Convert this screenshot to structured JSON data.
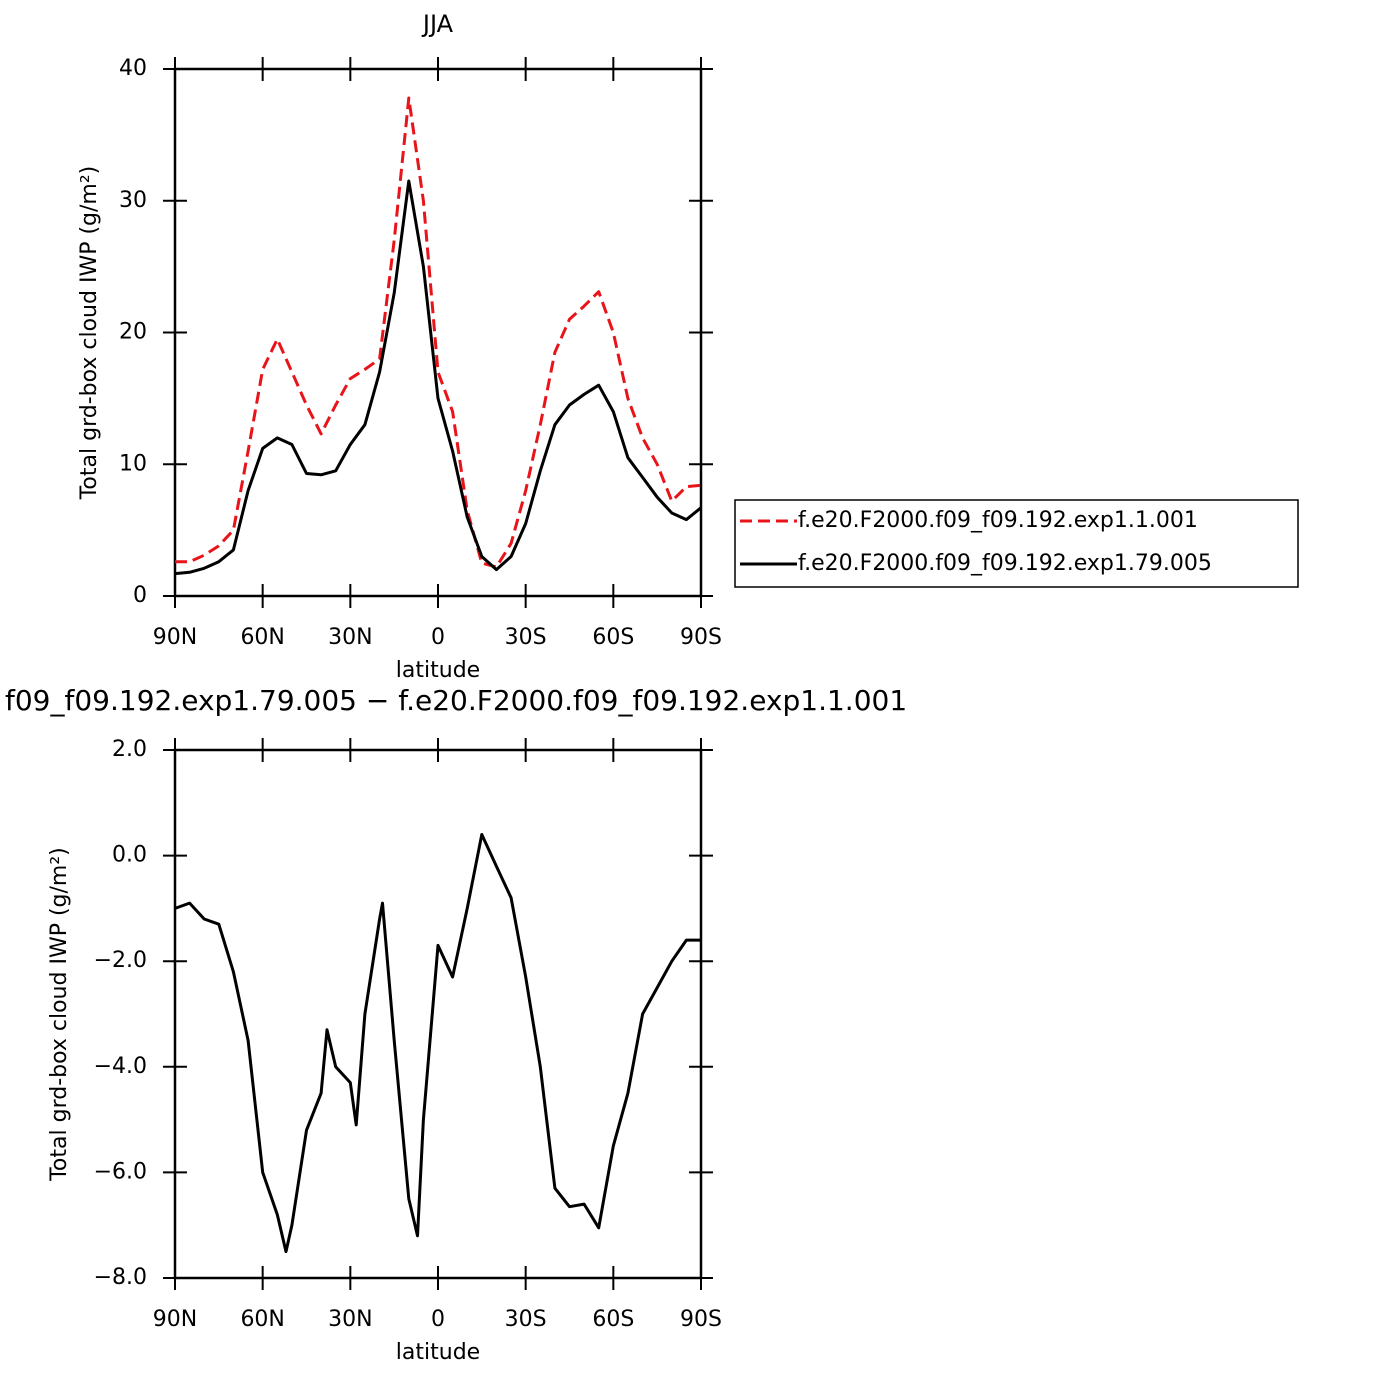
{
  "chart_data": [
    {
      "type": "line",
      "title": "JJA",
      "x_label": "latitude",
      "y_label": "Total grd-box cloud IWP (g/m²)",
      "x": [
        90,
        85,
        80,
        75,
        70,
        65,
        60,
        55,
        50,
        45,
        40,
        35,
        30,
        25,
        20,
        15,
        10,
        5,
        0,
        -5,
        -10,
        -15,
        -20,
        -25,
        -30,
        -35,
        -40,
        -45,
        -50,
        -55,
        -60,
        -65,
        -70,
        -75,
        -80,
        -85,
        -90
      ],
      "xlim": [
        90,
        -90
      ],
      "xticks": [
        {
          "value": 90,
          "label": "90N"
        },
        {
          "value": 60,
          "label": "60N"
        },
        {
          "value": 30,
          "label": "30N"
        },
        0,
        {
          "value": -30,
          "label": "30S"
        },
        {
          "value": -60,
          "label": "60S"
        },
        {
          "value": -90,
          "label": "90S"
        }
      ],
      "ylim": [
        0,
        40
      ],
      "yticks": [
        0,
        10,
        20,
        30,
        40
      ],
      "legend": "right",
      "series": [
        {
          "name": "f.e20.F2000.f09_f09.192.exp1.1.001",
          "color": "#e8141a",
          "line_style": "dashed",
          "values": [
            2.6,
            2.6,
            3.1,
            3.8,
            5.0,
            11,
            17.2,
            19.5,
            17,
            14.5,
            12.3,
            14.5,
            16.5,
            17.2,
            18,
            27,
            37.8,
            30,
            17,
            14,
            6.5,
            2.5,
            2.2,
            4,
            8,
            13,
            18.5,
            21,
            22,
            23.1,
            20,
            15,
            12,
            10,
            7.2,
            8.3,
            8.4
          ]
        },
        {
          "name": "f.e20.F2000.f09_f09.192.exp1.79.005",
          "color": "#000000",
          "line_style": "solid",
          "values": [
            1.7,
            1.8,
            2.1,
            2.6,
            3.5,
            8,
            11.2,
            12,
            11.5,
            9.3,
            9.2,
            9.5,
            11.5,
            13,
            17,
            23,
            31.5,
            25,
            15,
            11,
            6,
            3,
            2,
            3,
            5.5,
            9.5,
            13,
            14.5,
            15.3,
            16,
            14,
            10.5,
            9,
            7.5,
            6.3,
            5.8,
            6.7
          ]
        }
      ]
    },
    {
      "type": "line",
      "title": "f09_f09.192.exp1.79.005 − f.e20.F2000.f09_f09.192.exp1.1.001",
      "x_label": "latitude",
      "y_label": "Total grd-box cloud IWP (g/m²)",
      "x": [
        90,
        85,
        80,
        75,
        70,
        65,
        60,
        55,
        52,
        50,
        45,
        40,
        38,
        35,
        30,
        28,
        25,
        20,
        19,
        15,
        10,
        7,
        5,
        0,
        -5,
        -10,
        -15,
        -20,
        -25,
        -30,
        -35,
        -40,
        -45,
        -50,
        -55,
        -60,
        -65,
        -70,
        -75,
        -80,
        -85,
        -90
      ],
      "xlim": [
        90,
        -90
      ],
      "xticks": [
        {
          "value": 90,
          "label": "90N"
        },
        {
          "value": 60,
          "label": "60N"
        },
        {
          "value": 30,
          "label": "30N"
        },
        0,
        {
          "value": -30,
          "label": "30S"
        },
        {
          "value": -60,
          "label": "60S"
        },
        {
          "value": -90,
          "label": "90S"
        }
      ],
      "ylim": [
        -8,
        2
      ],
      "yticks": [
        {
          "value": 2,
          "label": "2.0"
        },
        {
          "value": 0,
          "label": "0.0"
        },
        {
          "value": -2,
          "label": "−2.0"
        },
        {
          "value": -4,
          "label": "−4.0"
        },
        {
          "value": -6,
          "label": "−6.0"
        },
        {
          "value": -8,
          "label": "−8.0"
        }
      ],
      "series": [
        {
          "color": "#000000",
          "line_style": "solid",
          "values": [
            -1.0,
            -0.9,
            -1.2,
            -1.3,
            -2.2,
            -3.5,
            -6.0,
            -6.8,
            -7.5,
            -7.0,
            -5.2,
            -4.5,
            -3.3,
            -4.0,
            -4.3,
            -5.1,
            -3.0,
            -1.2,
            -0.9,
            -3.5,
            -6.5,
            -7.2,
            -5.0,
            -1.7,
            -2.3,
            -1.0,
            0.4,
            -0.2,
            -0.8,
            -2.3,
            -4.0,
            -6.3,
            -6.65,
            -6.6,
            -7.05,
            -5.5,
            -4.5,
            -3.0,
            -2.5,
            -2.0,
            -1.6,
            -1.6
          ]
        }
      ]
    }
  ]
}
